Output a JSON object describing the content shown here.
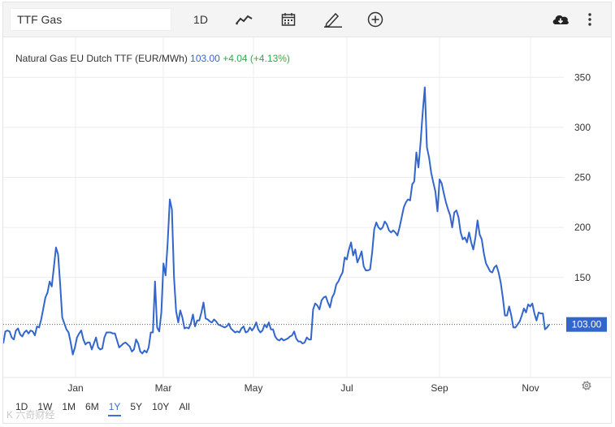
{
  "toolbar": {
    "symbol_value": "TTF Gas",
    "interval_label": "1D",
    "icons": [
      "line-style-icon",
      "calendar-icon",
      "draw-icon",
      "add-indicator-icon",
      "download-icon",
      "more-icon"
    ]
  },
  "legend": {
    "name": "Natural Gas EU Dutch TTF (EUR/MWh)",
    "price": "103.00",
    "change": "+4.04 (+4.13%)"
  },
  "range_buttons": [
    "1D",
    "1W",
    "1M",
    "6M",
    "1Y",
    "5Y",
    "10Y",
    "All"
  ],
  "active_range": "1Y",
  "watermark": "K  六奇财经",
  "colors": {
    "line": "#3366cc",
    "price_label_bg": "#3366cc",
    "positive": "#2cad47",
    "grid": "#ececec"
  },
  "chart_data": {
    "type": "line",
    "title": "Natural Gas EU Dutch TTF (EUR/MWh)",
    "x_tick_labels": [
      "Jan",
      "Mar",
      "May",
      "Jul",
      "Sep",
      "Nov"
    ],
    "y_ticks": [
      150,
      200,
      250,
      300,
      350
    ],
    "ylim": [
      50,
      390
    ],
    "grid": true,
    "last_value": "103.00",
    "series": [
      {
        "values": [
          84,
          96,
          97,
          96,
          90,
          88,
          97,
          99,
          93,
          91,
          95,
          97,
          94,
          97,
          96,
          92,
          101,
          100,
          108,
          119,
          130,
          135,
          146,
          141,
          160,
          180,
          173,
          143,
          110,
          104,
          98,
          95,
          85,
          73,
          80,
          90,
          94,
          97,
          88,
          83,
          85,
          85,
          78,
          84,
          90,
          80,
          78,
          79,
          90,
          95,
          95,
          95,
          94,
          94,
          87,
          80,
          82,
          84,
          85,
          83,
          81,
          76,
          78,
          88,
          84,
          76,
          74,
          77,
          75,
          80,
          95,
          95,
          146,
          100,
          96,
          115,
          164,
          152,
          185,
          228,
          218,
          150,
          116,
          105,
          117,
          110,
          99,
          100,
          99,
          104,
          113,
          101,
          107,
          107,
          115,
          125,
          109,
          108,
          106,
          105,
          108,
          106,
          103,
          102,
          101,
          100,
          101,
          104,
          99,
          97,
          95,
          96,
          95,
          99,
          101,
          95,
          96,
          100,
          97,
          100,
          105,
          98,
          95,
          97,
          103,
          100,
          105,
          98,
          98,
          91,
          88,
          87,
          89,
          87,
          88,
          89,
          91,
          92,
          96,
          89,
          86,
          86,
          84,
          85,
          90,
          88,
          88,
          118,
          124,
          122,
          118,
          127,
          130,
          131,
          125,
          120,
          130,
          134,
          143,
          146,
          151,
          155,
          170,
          168,
          178,
          185,
          172,
          178,
          165,
          170,
          176,
          161,
          157,
          157,
          158,
          175,
          198,
          205,
          200,
          198,
          200,
          206,
          203,
          197,
          195,
          197,
          195,
          192,
          200,
          210,
          220,
          225,
          228,
          227,
          243,
          246,
          275,
          260,
          285,
          315,
          340,
          280,
          270,
          255,
          245,
          236,
          216,
          248,
          244,
          234,
          225,
          218,
          212,
          200,
          215,
          217,
          210,
          195,
          188,
          190,
          185,
          195,
          185,
          178,
          190,
          207,
          193,
          188,
          174,
          164,
          160,
          156,
          155,
          160,
          162,
          155,
          145,
          130,
          112,
          112,
          121,
          112,
          100,
          100,
          103,
          106,
          112,
          119,
          115,
          123,
          121,
          124,
          114,
          107,
          115,
          114,
          114,
          98,
          100,
          103
        ]
      }
    ]
  }
}
